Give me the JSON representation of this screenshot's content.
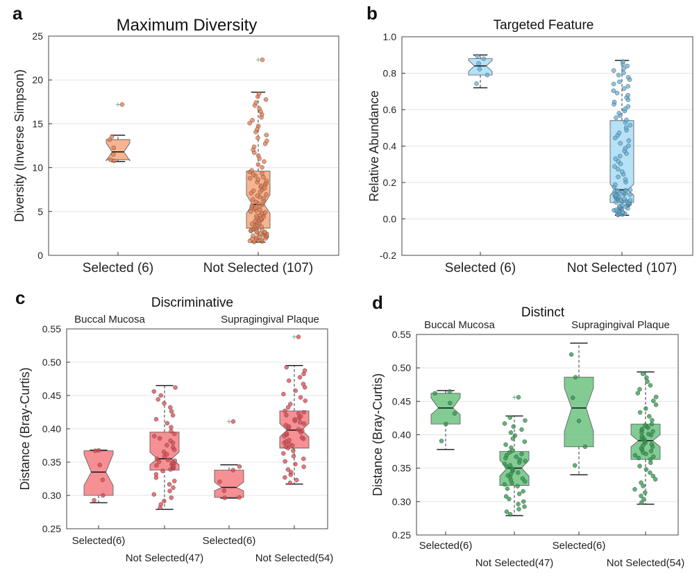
{
  "panels": {
    "a": {
      "letter": "a"
    },
    "b": {
      "letter": "b"
    },
    "c": {
      "letter": "c"
    },
    "d": {
      "letter": "d"
    }
  },
  "chart_data": [
    {
      "panel": "a",
      "type": "box",
      "title": "Maximum Diversity",
      "ylabel": "Diversity (Inverse Simpson)",
      "ylim": [
        0,
        25
      ],
      "yticks": [
        0,
        5,
        10,
        15,
        20,
        25
      ],
      "grid": true,
      "color": "#f4a77e",
      "point_color": "#e8794a",
      "categories": [
        "Selected (6)",
        "Not Selected (107)"
      ],
      "boxes": [
        {
          "label": "Selected (6)",
          "min": 10.7,
          "q1": 10.9,
          "median": 11.8,
          "q3": 13.2,
          "max": 13.7,
          "notch_low": 10.8,
          "notch_high": 12.8,
          "outliers": [
            17.2
          ],
          "n": 6
        },
        {
          "label": "Not Selected (107)",
          "min": 1.5,
          "q1": 3.1,
          "median": 5.8,
          "q3": 9.6,
          "max": 18.6,
          "notch_low": 4.8,
          "notch_high": 6.9,
          "outliers": [
            22.3
          ],
          "n": 107
        }
      ]
    },
    {
      "panel": "b",
      "type": "box",
      "title": "Targeted Feature",
      "ylabel": "Relative Abundance",
      "ylim": [
        -0.2,
        1.0
      ],
      "yticks": [
        -0.2,
        0.0,
        0.2,
        0.4,
        0.6,
        0.8,
        1.0
      ],
      "grid": true,
      "color": "#a9dcf4",
      "point_color": "#5fb3e0",
      "categories": [
        "Selected (6)",
        "Not Selected (107)"
      ],
      "boxes": [
        {
          "label": "Selected (6)",
          "min": 0.72,
          "q1": 0.79,
          "median": 0.84,
          "q3": 0.88,
          "max": 0.9,
          "notch_low": 0.81,
          "notch_high": 0.87,
          "outliers": [],
          "n": 6
        },
        {
          "label": "Not Selected (107)",
          "min": 0.02,
          "q1": 0.09,
          "median": 0.16,
          "q3": 0.54,
          "max": 0.87,
          "notch_low": 0.13,
          "notch_high": 0.19,
          "outliers": [],
          "n": 107
        }
      ]
    },
    {
      "panel": "c",
      "type": "box",
      "title": "Discriminative",
      "ylabel": "Distance (Bray-Curtis)",
      "ylim": [
        0.25,
        0.55
      ],
      "yticks": [
        0.25,
        0.3,
        0.35,
        0.4,
        0.45,
        0.5,
        0.55
      ],
      "grid": true,
      "color": "#f47c82",
      "point_color": "#e0454e",
      "group_labels": [
        "Buccal Mucosa",
        "Supragingival Plaque"
      ],
      "categories": [
        "Selected(6)",
        "Not Selected(47)",
        "Selected(6)",
        "Not Selected(54)"
      ],
      "boxes": [
        {
          "label": "Selected(6)",
          "min": 0.289,
          "q1": 0.3,
          "median": 0.335,
          "q3": 0.367,
          "max": 0.368,
          "notch_low": 0.315,
          "notch_high": 0.362,
          "outliers": [],
          "n": 6
        },
        {
          "label": "Not Selected(47)",
          "min": 0.279,
          "q1": 0.338,
          "median": 0.355,
          "q3": 0.395,
          "max": 0.465,
          "notch_low": 0.346,
          "notch_high": 0.365,
          "outliers": [],
          "n": 47
        },
        {
          "label": "Selected(6)",
          "min": 0.296,
          "q1": 0.297,
          "median": 0.312,
          "q3": 0.338,
          "max": 0.346,
          "notch_low": 0.307,
          "notch_high": 0.32,
          "outliers": [
            0.411
          ],
          "n": 6
        },
        {
          "label": "Not Selected(54)",
          "min": 0.317,
          "q1": 0.371,
          "median": 0.398,
          "q3": 0.427,
          "max": 0.495,
          "notch_low": 0.388,
          "notch_high": 0.408,
          "outliers": [
            0.538
          ],
          "n": 54
        }
      ]
    },
    {
      "panel": "d",
      "type": "box",
      "title": "Distinct",
      "ylabel": "Distance (Bray-Curtis)",
      "ylim": [
        0.25,
        0.55
      ],
      "yticks": [
        0.25,
        0.3,
        0.35,
        0.4,
        0.45,
        0.5,
        0.55
      ],
      "grid": true,
      "color": "#6cc381",
      "point_color": "#2a9a4a",
      "group_labels": [
        "Buccal Mucosa",
        "Supragingival Plaque"
      ],
      "categories": [
        "Selected(6)",
        "Not Selected(47)",
        "Selected(6)",
        "Not Selected(54)"
      ],
      "boxes": [
        {
          "label": "Selected(6)",
          "min": 0.378,
          "q1": 0.416,
          "median": 0.44,
          "q3": 0.462,
          "max": 0.466,
          "notch_low": 0.43,
          "notch_high": 0.455,
          "outliers": [],
          "n": 6
        },
        {
          "label": "Not Selected(47)",
          "min": 0.279,
          "q1": 0.324,
          "median": 0.35,
          "q3": 0.375,
          "max": 0.428,
          "notch_low": 0.338,
          "notch_high": 0.362,
          "outliers": [
            0.456
          ],
          "n": 47
        },
        {
          "label": "Selected(6)",
          "min": 0.34,
          "q1": 0.382,
          "median": 0.44,
          "q3": 0.486,
          "max": 0.537,
          "notch_low": 0.405,
          "notch_high": 0.47,
          "outliers": [],
          "n": 6
        },
        {
          "label": "Not Selected(54)",
          "min": 0.296,
          "q1": 0.363,
          "median": 0.391,
          "q3": 0.416,
          "max": 0.494,
          "notch_low": 0.382,
          "notch_high": 0.4,
          "outliers": [],
          "n": 54
        }
      ]
    }
  ]
}
